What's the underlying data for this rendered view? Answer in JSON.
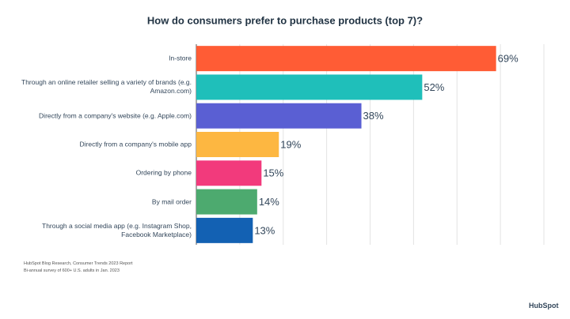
{
  "chart_data": {
    "type": "bar",
    "orientation": "horizontal",
    "title": "How do consumers prefer to purchase products (top 7)?",
    "categories": [
      "In-store",
      "Through an online retailer selling a variety of brands (e.g. Amazon.com)",
      "Directly from a company's website (e.g. Apple.com)",
      "Directly from a company's mobile app",
      "Ordering by phone",
      "By mail order",
      "Through a social media app (e.g. Instagram Shop, Facebook Marketplace)"
    ],
    "values": [
      69,
      52,
      38,
      19,
      15,
      14,
      13
    ],
    "value_labels": [
      "69%",
      "52%",
      "38%",
      "19%",
      "15%",
      "14%",
      "13%"
    ],
    "colors": [
      "#ff5c35",
      "#1fbfba",
      "#5a5fd3",
      "#fdb741",
      "#f23a7c",
      "#4daa6f",
      "#1361b3"
    ],
    "xlim": [
      0,
      80
    ],
    "xticks": [
      0,
      10,
      20,
      30,
      40,
      50,
      60,
      70,
      80
    ],
    "grid": true,
    "source": [
      "HubSpot Blog Research, Consumer Trends 2023 Report",
      "Bi-annual survey of 600+ U.S. adults in Jan. 2023"
    ],
    "brand": "HubSpot"
  }
}
